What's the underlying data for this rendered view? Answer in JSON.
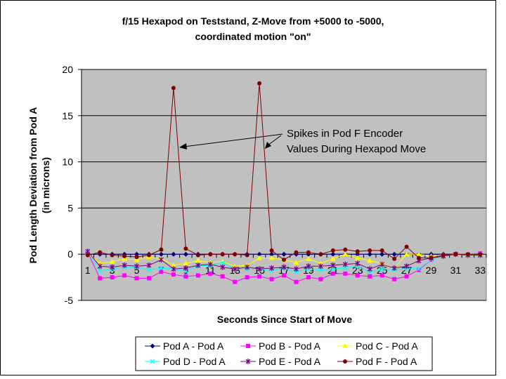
{
  "chart_data": {
    "type": "line",
    "title_lines": [
      "f/15 Hexapod on Teststand, Z-Move from +5000 to -5000,",
      "coordinated motion \"on\""
    ],
    "xlabel": "Seconds Since Start of Move",
    "ylabel_lines": [
      "Pod Length Deviation from Pod A",
      "(in microns)"
    ],
    "ylim": [
      -5,
      20
    ],
    "yticks": [
      -5,
      0,
      5,
      10,
      15,
      20
    ],
    "xticks": [
      "1",
      "3",
      "5",
      "7",
      "9",
      "11",
      "13",
      "15",
      "17",
      "19",
      "21",
      "23",
      "25",
      "27",
      "29",
      "31",
      "33"
    ],
    "grid": "horizontal",
    "legend_position": "bottom",
    "plot_background": "#c0c0c0",
    "annotation_lines": [
      "Spikes in Pod F Encoder",
      "Values During Hexapod Move"
    ],
    "x": [
      1,
      2,
      3,
      4,
      5,
      6,
      7,
      8,
      9,
      10,
      11,
      12,
      13,
      14,
      15,
      16,
      17,
      18,
      19,
      20,
      21,
      22,
      23,
      24,
      25,
      26,
      27,
      28,
      29,
      30,
      31,
      32,
      33
    ],
    "series": [
      {
        "name": "Pod A - Pod A",
        "color": "#000080",
        "marker": "diamond",
        "values": [
          0,
          0,
          0,
          0,
          0,
          0,
          0,
          0,
          0,
          0,
          0,
          0,
          0,
          0,
          0,
          0,
          0,
          0,
          0,
          0,
          0,
          0,
          0,
          0,
          0,
          0,
          0,
          0,
          0,
          0,
          0,
          0,
          0
        ]
      },
      {
        "name": "Pod B - Pod A",
        "color": "#ff00ff",
        "marker": "square",
        "values": [
          0.2,
          -2.6,
          -2.5,
          -2.3,
          -2.6,
          -2.6,
          -1.9,
          -2.2,
          -2.4,
          -2.3,
          -2.1,
          -2.4,
          -3.0,
          -2.5,
          -2.4,
          -2.7,
          -2.3,
          -3.0,
          -2.5,
          -2.7,
          -2.1,
          -2.1,
          -2.3,
          -2.4,
          -2.3,
          -2.7,
          -2.4,
          -1.7,
          -0.6,
          -0.2,
          0,
          0,
          0.1
        ]
      },
      {
        "name": "Pod C - Pod A",
        "color": "#ffff00",
        "marker": "triangle",
        "values": [
          0.1,
          -1.0,
          -0.8,
          -0.5,
          -0.6,
          -0.3,
          -0.5,
          -1.2,
          -1.0,
          -0.7,
          -0.9,
          -0.8,
          -1.3,
          -1.2,
          -0.4,
          -0.4,
          -0.6,
          -0.9,
          -0.5,
          -1.0,
          -0.5,
          0,
          -0.4,
          -0.7,
          -1.0,
          -1.5,
          0,
          0,
          -0.2,
          -0.1,
          0,
          0,
          0
        ]
      },
      {
        "name": "Pod D - Pod A",
        "color": "#00ffff",
        "marker": "x",
        "values": [
          0.2,
          -1.8,
          -1.6,
          -1.4,
          -1.4,
          -1.7,
          -1.5,
          -1.6,
          -1.8,
          -1.3,
          -1.2,
          -0.9,
          -1.6,
          -1.6,
          -1.6,
          -1.8,
          -1.5,
          -1.9,
          -1.6,
          -1.7,
          -1.6,
          -1.5,
          -1.3,
          -1.9,
          -1.6,
          -1.7,
          -1.5,
          -1.6,
          -0.6,
          -0.2,
          0,
          0,
          0
        ]
      },
      {
        "name": "Pod E - Pod A",
        "color": "#800080",
        "marker": "star",
        "values": [
          0.3,
          -1.3,
          -1.4,
          -1.2,
          -1.3,
          -1.2,
          -0.6,
          -1.6,
          -1.5,
          -1.2,
          -1.1,
          -1.4,
          -1.6,
          -1.4,
          -1.6,
          -1.5,
          -1.4,
          -1.6,
          -1.3,
          -1.3,
          -1.2,
          -1.1,
          -1.0,
          -1.6,
          -1.1,
          -1.5,
          -1.3,
          -0.7,
          -0.4,
          -0.2,
          0,
          -0.1,
          -0.1
        ]
      },
      {
        "name": "Pod F - Pod A",
        "color": "#800000",
        "marker": "circle",
        "values": [
          -0.1,
          0.2,
          -0.1,
          -0.2,
          -0.3,
          -0.1,
          0.5,
          18.0,
          0.6,
          -0.1,
          0,
          0,
          0,
          -0.1,
          18.5,
          0.4,
          -0.6,
          0.2,
          0.2,
          0,
          0.4,
          0.5,
          0.3,
          0.4,
          0.4,
          -0.5,
          0.8,
          -0.4,
          -0.4,
          -0.1,
          0,
          0,
          0
        ]
      }
    ]
  }
}
